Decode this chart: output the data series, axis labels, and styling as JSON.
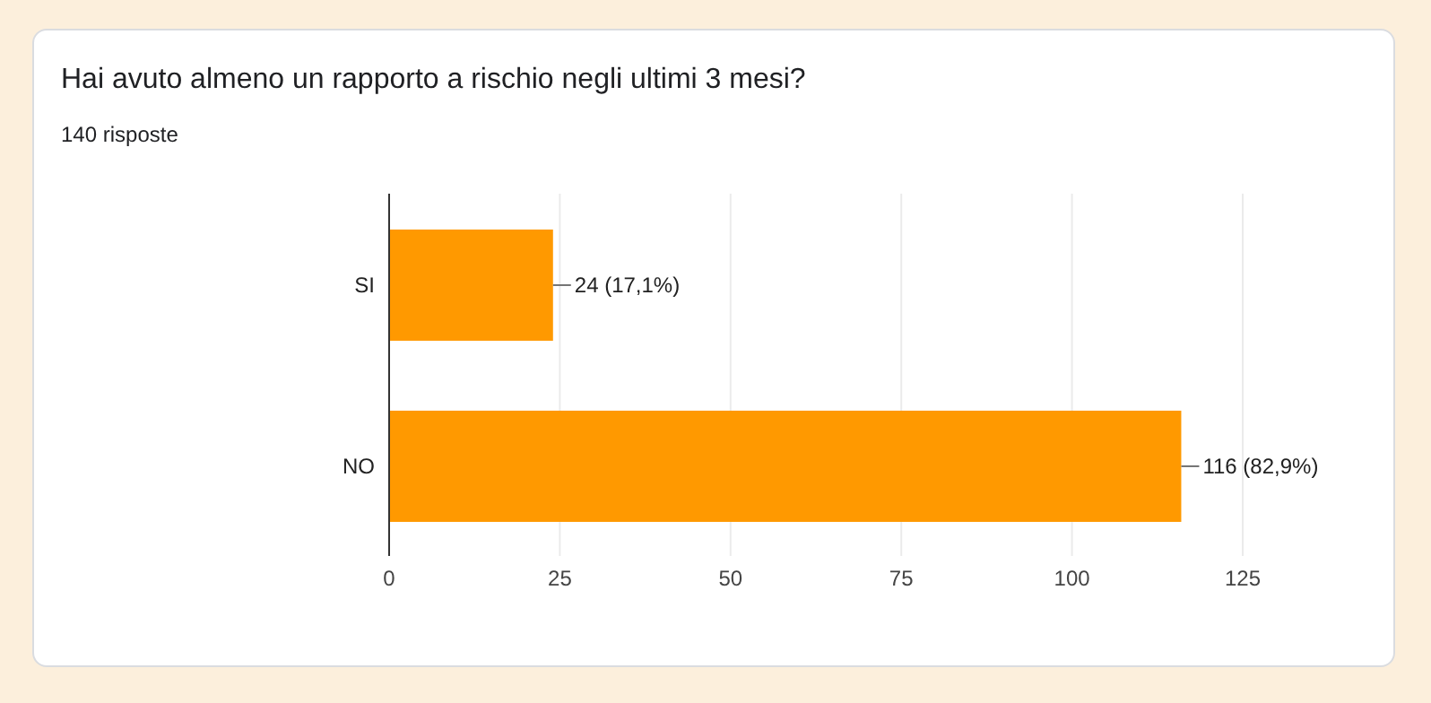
{
  "chart_data": {
    "type": "bar",
    "orientation": "horizontal",
    "title": "Hai avuto almeno un rapporto a rischio negli ultimi 3 mesi?",
    "subtitle": "140 risposte",
    "categories": [
      "SI",
      "NO"
    ],
    "values": [
      24,
      116
    ],
    "value_labels": [
      "24 (17,1%)",
      "116 (82,9%)"
    ],
    "color": "#ff9900",
    "xlim": [
      0,
      125
    ],
    "xticks": [
      0,
      25,
      50,
      75,
      100,
      125
    ],
    "grid": "x"
  }
}
